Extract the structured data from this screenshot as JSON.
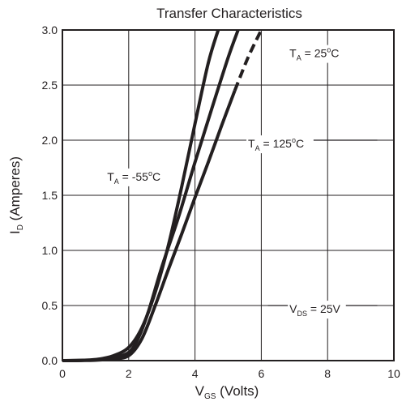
{
  "chart_data": {
    "type": "line",
    "title": "Transfer Characteristics",
    "xlabel": {
      "main": "V",
      "sub": "GS",
      "suffix": " (Volts)"
    },
    "ylabel": {
      "main": "I",
      "sub": "D",
      "suffix": " (Amperes)"
    },
    "xlim": [
      0,
      10
    ],
    "ylim": [
      0,
      3.0
    ],
    "xticks": [
      "0",
      "2",
      "4",
      "6",
      "8",
      "10"
    ],
    "yticks": [
      "0.0",
      "0.5",
      "1.0",
      "1.5",
      "2.0",
      "2.5",
      "3.0"
    ],
    "grid": true,
    "colors": {
      "line": "#231f20",
      "grid": "#231f20"
    },
    "series": [
      {
        "name": "T_A = -55°C",
        "style": "solid",
        "x": [
          0,
          0.5,
          1.0,
          1.5,
          2.0,
          2.4,
          2.8,
          3.2,
          3.6,
          4.0,
          4.4,
          4.7
        ],
        "y": [
          0,
          0.002,
          0.01,
          0.04,
          0.12,
          0.3,
          0.62,
          1.05,
          1.58,
          2.15,
          2.7,
          3.0
        ]
      },
      {
        "name": "T_A = 25°C",
        "style": "solid",
        "x": [
          0,
          0.5,
          1.0,
          1.5,
          2.0,
          2.3,
          2.6,
          3.0,
          3.5,
          4.0,
          4.5,
          5.0,
          5.3
        ],
        "y": [
          0,
          0.002,
          0.007,
          0.025,
          0.075,
          0.21,
          0.45,
          0.85,
          1.3,
          1.8,
          2.28,
          2.75,
          3.0
        ]
      },
      {
        "name": "T_A = 125°C",
        "style": "solid-then-dashed",
        "dash_from_x": 5.2,
        "x": [
          0,
          0.5,
          1.0,
          1.5,
          2.0,
          2.4,
          2.8,
          3.2,
          3.6,
          4.0,
          4.4,
          4.8,
          5.2,
          5.6,
          6.0
        ],
        "y": [
          0,
          0.001,
          0.004,
          0.015,
          0.045,
          0.2,
          0.5,
          0.83,
          1.15,
          1.48,
          1.8,
          2.13,
          2.45,
          2.75,
          3.0
        ]
      }
    ],
    "annotations": [
      {
        "id": "ann-25",
        "main": "T",
        "sub": "A",
        "rest": " = 25",
        "sup": "o",
        "tail": "C",
        "x": 6.85,
        "y": 2.79,
        "leader_to_x": 5.1,
        "leader_y": 2.7
      },
      {
        "id": "ann-125",
        "main": "T",
        "sub": "A",
        "rest": " = 125",
        "sup": "o",
        "tail": "C",
        "x": 5.6,
        "y": 1.97,
        "leader_to_x": 9.5,
        "leader_y": 2.0
      },
      {
        "id": "ann-m55",
        "main": "T",
        "sub": "A",
        "rest": " = -55",
        "sup": "o",
        "tail": "C",
        "x": 1.35,
        "y": 1.67
      },
      {
        "id": "ann-vds",
        "main": "V",
        "sub": "DS",
        "rest": " = 25V",
        "sup": "",
        "tail": "",
        "x": 6.85,
        "y": 0.47,
        "leader_from_x": 6.2,
        "leader_to_x": 9.5,
        "leader_y": 0.5
      }
    ]
  }
}
